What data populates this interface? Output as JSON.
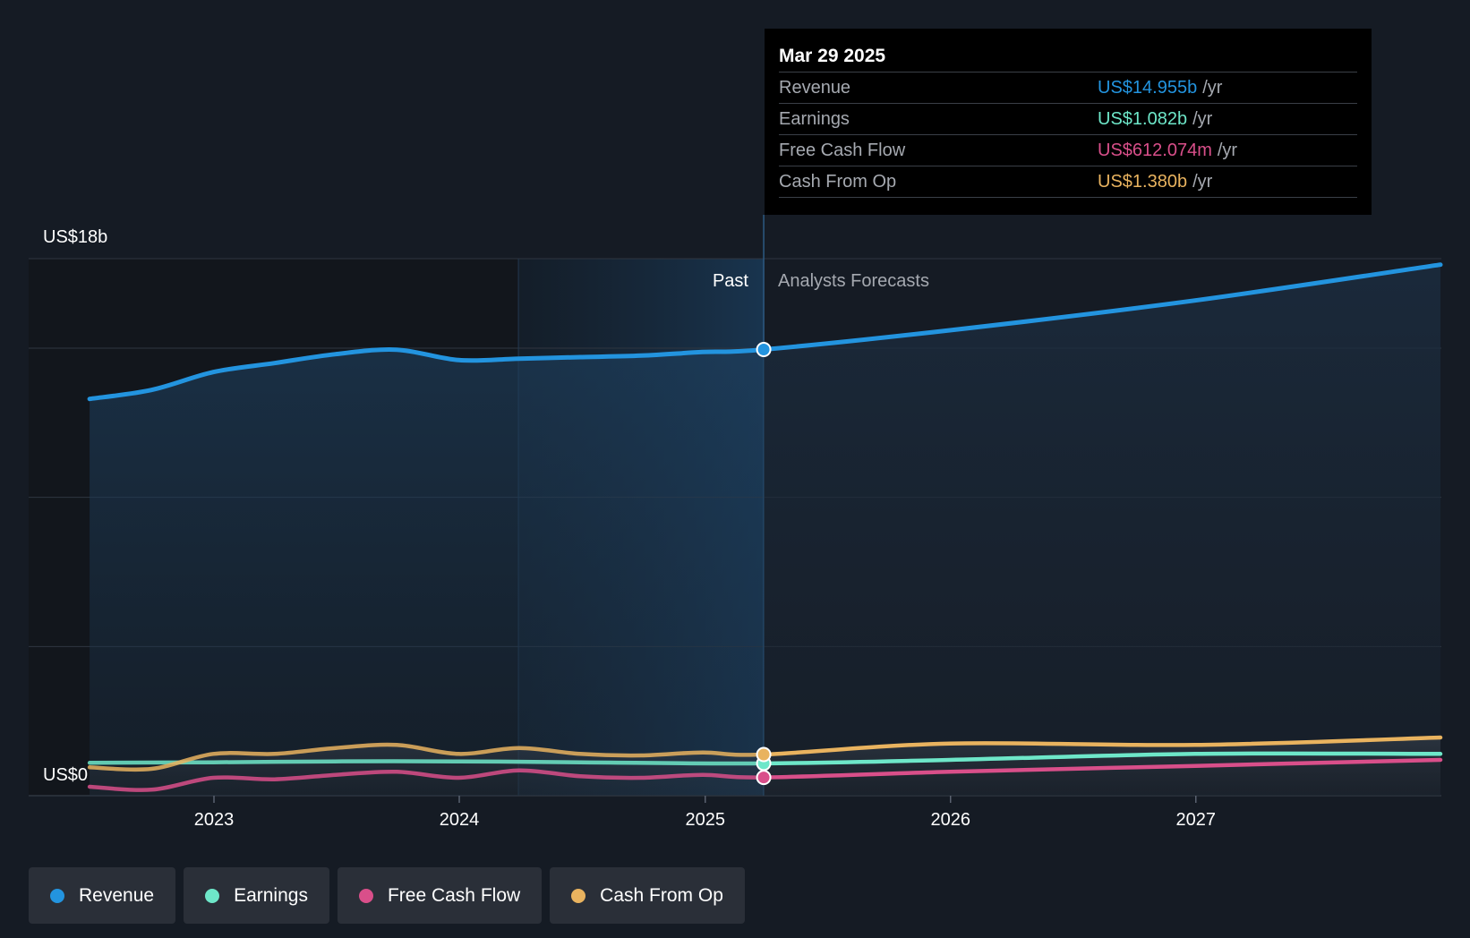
{
  "colors": {
    "background": "#151b24",
    "revenue": "#2394df",
    "earnings": "#6ee7c9",
    "free_cash_flow": "#d94f8a",
    "cash_from_op": "#e9b35f",
    "grid": "#2f3640",
    "muted_text": "#a5a9b0"
  },
  "tooltip": {
    "date": "Mar 29 2025",
    "rows": [
      {
        "label": "Revenue",
        "value": "US$14.955b",
        "unit": "/yr",
        "color": "#2394df"
      },
      {
        "label": "Earnings",
        "value": "US$1.082b",
        "unit": "/yr",
        "color": "#6ee7c9"
      },
      {
        "label": "Free Cash Flow",
        "value": "US$612.074m",
        "unit": "/yr",
        "color": "#d94f8a"
      },
      {
        "label": "Cash From Op",
        "value": "US$1.380b",
        "unit": "/yr",
        "color": "#e9b35f"
      }
    ]
  },
  "legend": [
    {
      "label": "Revenue",
      "color": "#2394df",
      "icon": "circle-dot-icon"
    },
    {
      "label": "Earnings",
      "color": "#6ee7c9",
      "icon": "circle-dot-icon"
    },
    {
      "label": "Free Cash Flow",
      "color": "#d94f8a",
      "icon": "circle-dot-icon"
    },
    {
      "label": "Cash From Op",
      "color": "#e9b35f",
      "icon": "circle-dot-icon"
    }
  ],
  "chart_data": {
    "type": "line",
    "y_axis": {
      "top_label": "US$18b",
      "bottom_label": "US$0",
      "ylim": [
        0,
        18
      ],
      "unit": "US$ billions",
      "gridlines": [
        0,
        5,
        10,
        15,
        18
      ]
    },
    "x_axis": {
      "tick_labels": [
        "2023",
        "2024",
        "2025",
        "2026",
        "2027"
      ],
      "ticks": [
        "2023-01-01",
        "2024-01-01",
        "2025-01-01",
        "2026-01-01",
        "2027-01-01"
      ],
      "xlim": [
        "2022-06-05",
        "2027-12-31"
      ]
    },
    "regions": {
      "past_label": "Past",
      "forecast_label": "Analysts Forecasts",
      "divider_date": "2025-03-29",
      "highlight_start": "2024-03-29"
    },
    "series": [
      {
        "name": "Revenue",
        "points": [
          [
            "2022-06-30",
            13.3
          ],
          [
            "2022-09-30",
            13.6
          ],
          [
            "2022-12-31",
            14.2
          ],
          [
            "2023-04-01",
            14.5
          ],
          [
            "2023-07-01",
            14.8
          ],
          [
            "2023-09-30",
            14.95
          ],
          [
            "2023-12-31",
            14.6
          ],
          [
            "2024-03-30",
            14.65
          ],
          [
            "2024-06-29",
            14.7
          ],
          [
            "2024-09-28",
            14.75
          ],
          [
            "2024-12-28",
            14.87
          ],
          [
            "2025-03-29",
            14.955
          ],
          [
            "2025-12-31",
            15.6
          ],
          [
            "2026-12-31",
            16.6
          ],
          [
            "2027-12-31",
            17.8
          ]
        ],
        "forecast_from": "2025-03-29"
      },
      {
        "name": "Earnings",
        "points": [
          [
            "2022-06-30",
            1.1
          ],
          [
            "2022-12-31",
            1.12
          ],
          [
            "2023-06-30",
            1.15
          ],
          [
            "2023-12-31",
            1.15
          ],
          [
            "2024-06-29",
            1.12
          ],
          [
            "2025-03-29",
            1.082
          ],
          [
            "2025-12-31",
            1.2
          ],
          [
            "2026-12-31",
            1.4
          ],
          [
            "2027-12-31",
            1.4
          ]
        ],
        "forecast_from": "2025-03-29"
      },
      {
        "name": "Free Cash Flow",
        "points": [
          [
            "2022-06-30",
            0.3
          ],
          [
            "2022-09-30",
            0.2
          ],
          [
            "2022-12-31",
            0.6
          ],
          [
            "2023-04-01",
            0.55
          ],
          [
            "2023-07-01",
            0.7
          ],
          [
            "2023-09-30",
            0.8
          ],
          [
            "2023-12-31",
            0.6
          ],
          [
            "2024-03-30",
            0.85
          ],
          [
            "2024-06-29",
            0.65
          ],
          [
            "2024-09-28",
            0.6
          ],
          [
            "2024-12-28",
            0.7
          ],
          [
            "2025-03-29",
            0.612
          ],
          [
            "2025-12-31",
            0.8
          ],
          [
            "2026-12-31",
            1.0
          ],
          [
            "2027-12-31",
            1.2
          ]
        ],
        "forecast_from": "2025-03-29"
      },
      {
        "name": "Cash From Op",
        "points": [
          [
            "2022-06-30",
            0.95
          ],
          [
            "2022-09-30",
            0.9
          ],
          [
            "2022-12-31",
            1.4
          ],
          [
            "2023-04-01",
            1.4
          ],
          [
            "2023-07-01",
            1.6
          ],
          [
            "2023-09-30",
            1.7
          ],
          [
            "2023-12-31",
            1.4
          ],
          [
            "2024-03-30",
            1.6
          ],
          [
            "2024-06-29",
            1.4
          ],
          [
            "2024-09-28",
            1.35
          ],
          [
            "2024-12-28",
            1.45
          ],
          [
            "2025-03-29",
            1.38
          ],
          [
            "2025-12-31",
            1.75
          ],
          [
            "2026-12-31",
            1.7
          ],
          [
            "2027-12-31",
            1.95
          ]
        ],
        "forecast_from": "2025-03-29"
      }
    ],
    "grid": true,
    "legend_position": "bottom-left"
  }
}
